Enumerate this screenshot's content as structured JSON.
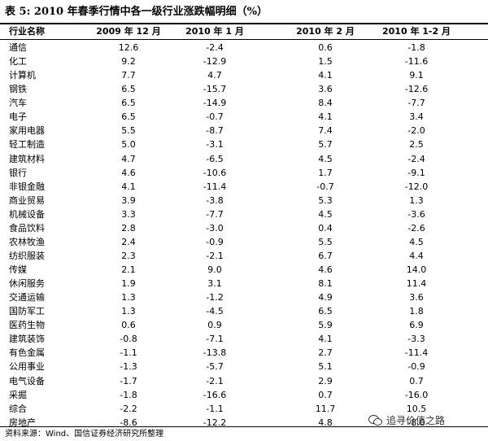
{
  "table": {
    "title": "表 5:  2010 年春季行情中各一级行业涨跌幅明细（%）",
    "headers": [
      "行业名称",
      "2009 年 12 月",
      "2010 年 1 月",
      "2010 年 2 月",
      "2010 年 1-2 月"
    ],
    "rows": [
      [
        "通信",
        "12.6",
        "-2.4",
        "0.6",
        "-1.8"
      ],
      [
        "化工",
        "9.2",
        "-12.9",
        "1.5",
        "-11.6"
      ],
      [
        "计算机",
        "7.7",
        "4.7",
        "4.1",
        "9.1"
      ],
      [
        "钢铁",
        "6.5",
        "-15.7",
        "3.6",
        "-12.6"
      ],
      [
        "汽车",
        "6.5",
        "-14.9",
        "8.4",
        "-7.7"
      ],
      [
        "电子",
        "6.5",
        "-0.7",
        "4.1",
        "3.4"
      ],
      [
        "家用电器",
        "5.5",
        "-8.7",
        "7.4",
        "-2.0"
      ],
      [
        "轻工制造",
        "5.0",
        "-3.1",
        "5.7",
        "2.5"
      ],
      [
        "建筑材料",
        "4.7",
        "-6.5",
        "4.5",
        "-2.4"
      ],
      [
        "银行",
        "4.6",
        "-10.6",
        "1.7",
        "-9.1"
      ],
      [
        "非银金融",
        "4.1",
        "-11.4",
        "-0.7",
        "-12.0"
      ],
      [
        "商业贸易",
        "3.9",
        "-3.8",
        "5.3",
        "1.3"
      ],
      [
        "机械设备",
        "3.3",
        "-7.7",
        "4.5",
        "-3.6"
      ],
      [
        "食品饮料",
        "2.8",
        "-3.0",
        "0.4",
        "-2.6"
      ],
      [
        "农林牧渔",
        "2.4",
        "-0.9",
        "5.5",
        "4.5"
      ],
      [
        "纺织服装",
        "2.3",
        "-2.1",
        "6.7",
        "4.4"
      ],
      [
        "传媒",
        "2.1",
        "9.0",
        "4.6",
        "14.0"
      ],
      [
        "休闲服务",
        "1.9",
        "3.1",
        "8.1",
        "11.4"
      ],
      [
        "交通运输",
        "1.3",
        "-1.2",
        "4.9",
        "3.6"
      ],
      [
        "国防军工",
        "1.3",
        "-4.5",
        "6.5",
        "1.8"
      ],
      [
        "医药生物",
        "0.6",
        "0.9",
        "5.9",
        "6.9"
      ],
      [
        "建筑装饰",
        "-0.8",
        "-7.1",
        "4.1",
        "-3.3"
      ],
      [
        "有色金属",
        "-1.1",
        "-13.8",
        "2.7",
        "-11.4"
      ],
      [
        "公用事业",
        "-1.3",
        "-5.7",
        "5.1",
        "-0.9"
      ],
      [
        "电气设备",
        "-1.7",
        "-2.1",
        "2.9",
        "0.7"
      ],
      [
        "采掘",
        "-1.8",
        "-16.6",
        "0.7",
        "-16.0"
      ],
      [
        "综合",
        "-2.2",
        "-1.1",
        "11.7",
        "10.5"
      ],
      [
        "房地产",
        "-8.6",
        "-12.2",
        "4.8",
        "-8.0"
      ]
    ],
    "source": "资料来源：Wind、国信证券经济研究所整理"
  },
  "watermark": {
    "text": "追寻价值之路",
    "icon": "wechat-icon"
  }
}
